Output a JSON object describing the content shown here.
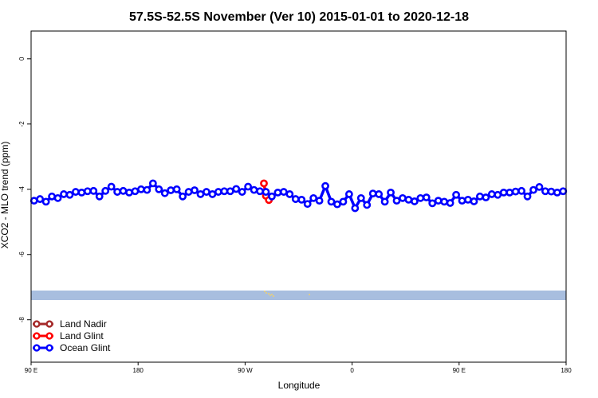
{
  "chart_data": {
    "type": "line",
    "title": "57.5S-52.5S November (Ver 10)   2015-01-01 to 2020-12-18",
    "xlabel": "Longitude",
    "ylabel": "XCO2 - MLO trend (ppm)",
    "xlim": [
      -90,
      180
    ],
    "ylim": [
      -9.3,
      0.85
    ],
    "x_ticks": [
      {
        "value": -90,
        "label": "90 E"
      },
      {
        "value": -36,
        "label": "180"
      },
      {
        "value": 18,
        "label": "90 W"
      },
      {
        "value": 72,
        "label": "0"
      },
      {
        "value": 126,
        "label": "90 E"
      },
      {
        "value": 180,
        "label": "180"
      }
    ],
    "y_ticks": [
      {
        "value": 0,
        "label": "0"
      },
      {
        "value": -2,
        "label": "-2"
      },
      {
        "value": -4,
        "label": "-4"
      },
      {
        "value": -6,
        "label": "-6"
      },
      {
        "value": -8,
        "label": "-8"
      }
    ],
    "grid": false,
    "legend_position": "bottom-left",
    "series": [
      {
        "name": "Land Nadir",
        "color": "#a52a2a",
        "x": [],
        "y": []
      },
      {
        "name": "Land Glint",
        "color": "#ff0000",
        "x": [
          27.5,
          28.5,
          30
        ],
        "y": [
          -3.82,
          -4.2,
          -4.33
        ]
      },
      {
        "name": "Ocean Glint",
        "color": "#0000ff",
        "x": [
          -88.5,
          -85.5,
          -82.5,
          -79.5,
          -76.5,
          -73.5,
          -70.5,
          -67.5,
          -64.5,
          -61.5,
          -58.5,
          -55.5,
          -52.5,
          -49.5,
          -46.5,
          -43.5,
          -40.5,
          -37.5,
          -34.5,
          -31.5,
          -28.5,
          -25.5,
          -22.5,
          -19.5,
          -16.5,
          -13.5,
          -10.5,
          -7.5,
          -4.5,
          -1.5,
          1.5,
          4.5,
          7.5,
          10.5,
          13.5,
          16.5,
          19.5,
          22.5,
          25.5,
          28.5,
          31.5,
          34.5,
          37.5,
          40.5,
          43.5,
          46.5,
          49.5,
          52.5,
          55.5,
          58.5,
          61.5,
          64.5,
          67.5,
          70.5,
          73.5,
          76.5,
          79.5,
          82.5,
          85.5,
          88.5,
          91.5,
          94.5,
          97.5,
          100.5,
          103.5,
          106.5,
          109.5,
          112.5,
          115.5,
          118.5,
          121.5,
          124.5,
          127.5,
          130.5,
          133.5,
          136.5,
          139.5,
          142.5,
          145.5,
          148.5,
          151.5,
          154.5,
          157.5,
          160.5,
          163.5,
          166.5,
          169.5,
          172.5,
          175.5,
          178.5
        ],
        "y": [
          -4.35,
          -4.3,
          -4.38,
          -4.22,
          -4.27,
          -4.15,
          -4.17,
          -4.08,
          -4.1,
          -4.06,
          -4.05,
          -4.22,
          -4.05,
          -3.92,
          -4.08,
          -4.05,
          -4.1,
          -4.06,
          -4.0,
          -4.02,
          -3.82,
          -4.0,
          -4.12,
          -4.03,
          -4.0,
          -4.22,
          -4.08,
          -4.03,
          -4.15,
          -4.08,
          -4.15,
          -4.08,
          -4.06,
          -4.06,
          -3.99,
          -4.08,
          -3.92,
          -4.02,
          -4.06,
          -4.08,
          -4.22,
          -4.1,
          -4.08,
          -4.15,
          -4.3,
          -4.32,
          -4.45,
          -4.27,
          -4.35,
          -3.9,
          -4.38,
          -4.46,
          -4.38,
          -4.15,
          -4.58,
          -4.27,
          -4.48,
          -4.13,
          -4.15,
          -4.38,
          -4.1,
          -4.35,
          -4.27,
          -4.32,
          -4.37,
          -4.27,
          -4.25,
          -4.43,
          -4.35,
          -4.38,
          -4.42,
          -4.17,
          -4.35,
          -4.32,
          -4.37,
          -4.22,
          -4.25,
          -4.15,
          -4.17,
          -4.1,
          -4.1,
          -4.07,
          -4.05,
          -4.22,
          -4.02,
          -3.93,
          -4.06,
          -4.07,
          -4.1,
          -4.06
        ]
      }
    ]
  },
  "legend": {
    "items": [
      {
        "label": "Land Nadir",
        "color": "#a52a2a"
      },
      {
        "label": "Land Glint",
        "color": "#ff0000"
      },
      {
        "label": "Ocean Glint",
        "color": "#0000ff"
      }
    ]
  },
  "colors": {
    "land_strip": "#a8bedf",
    "land_speckle": "#f0d070"
  }
}
